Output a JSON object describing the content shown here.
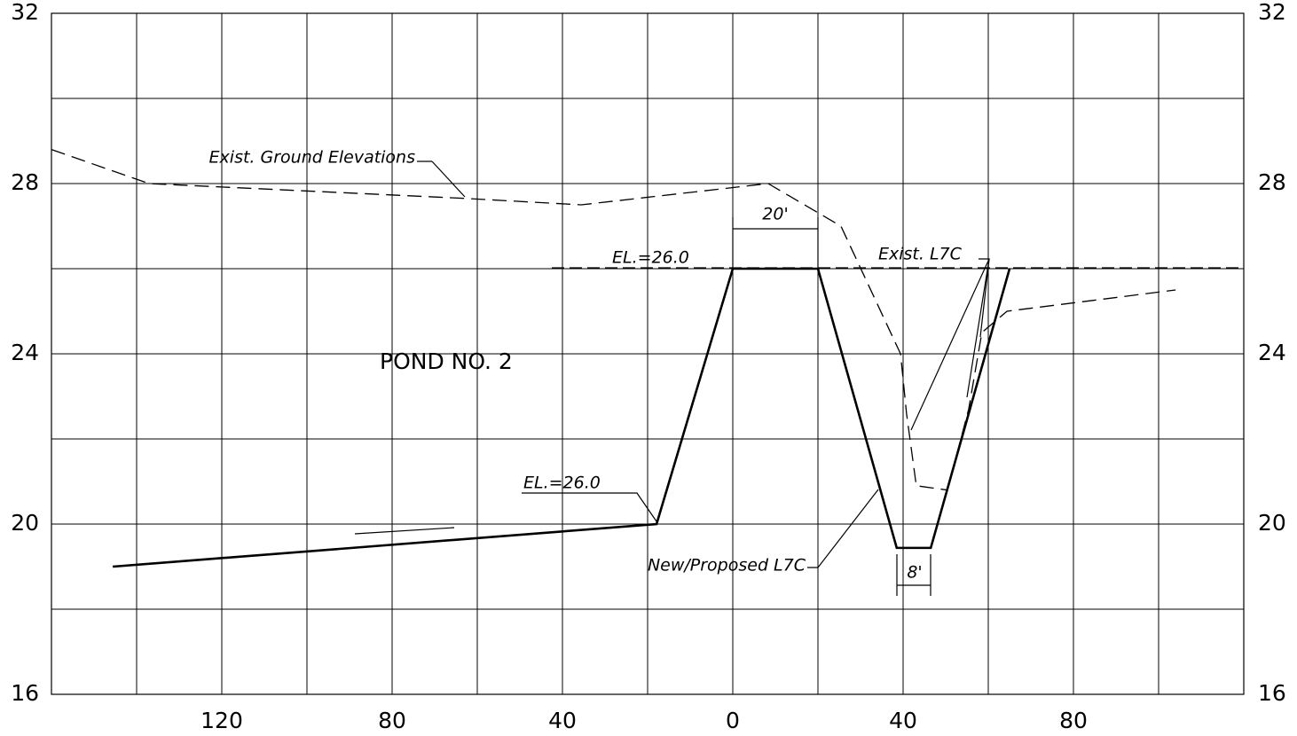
{
  "chart_data": {
    "type": "line",
    "xlim": [
      -160,
      120
    ],
    "ylim": [
      16,
      32
    ],
    "xticks": [
      {
        "value": -120,
        "label": "120"
      },
      {
        "value": -80,
        "label": "80"
      },
      {
        "value": -40,
        "label": "40"
      },
      0,
      40,
      80
    ],
    "xminor": [
      -140,
      -100,
      -60,
      -20,
      20,
      60,
      100
    ],
    "yticks": [
      16,
      20,
      24,
      28,
      32
    ],
    "yminor": [
      18,
      22,
      26,
      30
    ],
    "grid": true,
    "series": [
      {
        "name": "Exist. Ground Elevations",
        "color": "#000000",
        "style": "dashed",
        "x": [
          -160,
          -137.1,
          -62.7,
          -35.6,
          8.3,
          25.4,
          39.4,
          40.8,
          43.1,
          50.4,
          55.4,
          58.5,
          64.4,
          104
        ],
        "values": [
          28.8,
          28.0,
          27.65,
          27.5,
          28.0,
          27.0,
          24.0,
          22.6,
          20.9,
          20.8,
          22.7,
          24.5,
          25.0,
          25.5
        ]
      },
      {
        "name": "New/Proposed L7C",
        "color": "#000000",
        "style": "solid",
        "x": [
          -145.6,
          -17.9,
          0,
          20,
          38.5,
          46.5,
          65
        ],
        "values": [
          19.0,
          20.0,
          26.0,
          26.0,
          19.44,
          19.44,
          26.0
        ]
      }
    ],
    "annotations": [
      "EL.=26.0",
      "EL.=26.0",
      "20'",
      "8'",
      "Exist. L7C",
      "POND NO. 2"
    ]
  }
}
